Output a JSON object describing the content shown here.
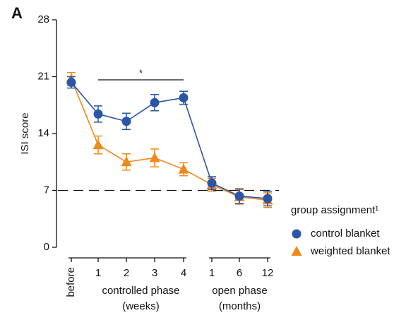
{
  "chart_data": {
    "type": "line",
    "panel_label": "A",
    "ylabel": "ISI score",
    "ylim": [
      0,
      28
    ],
    "yticks": [
      0,
      7,
      14,
      21,
      28
    ],
    "categories": [
      "before",
      "1",
      "2",
      "3",
      "4",
      "1",
      "6",
      "12"
    ],
    "x_groups": [
      {
        "label": "controlled phase",
        "unit": "(weeks)"
      },
      {
        "label": "open phase",
        "unit": "(months)"
      }
    ],
    "reference_line": 7,
    "annotation": "*",
    "legend_title": "group assignment¹",
    "series": [
      {
        "name": "control blanket",
        "color": "#2b55a6",
        "marker": "circle",
        "values": [
          20.3,
          16.4,
          15.5,
          17.8,
          18.4,
          7.9,
          6.3,
          6.0
        ],
        "errors": [
          0.7,
          1.0,
          1.0,
          1.0,
          0.8,
          0.8,
          0.9,
          0.9
        ]
      },
      {
        "name": "weighted blanket",
        "color": "#f0891c",
        "marker": "triangle",
        "values": [
          20.7,
          12.6,
          10.5,
          11.0,
          9.6,
          7.7,
          6.2,
          5.8
        ],
        "errors": [
          0.8,
          1.1,
          1.0,
          1.1,
          0.8,
          0.8,
          0.9,
          0.9
        ]
      }
    ]
  }
}
